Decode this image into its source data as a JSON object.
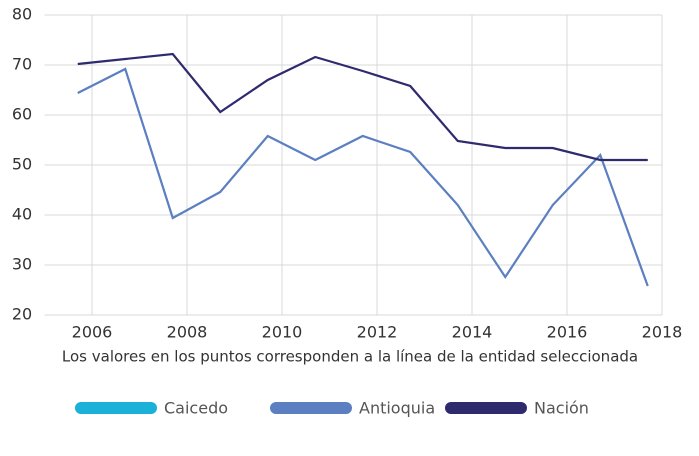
{
  "chart_data": {
    "type": "line",
    "x": [
      2005.7,
      2006.7,
      2007.7,
      2008.7,
      2009.7,
      2010.7,
      2011.7,
      2012.7,
      2013.7,
      2014.7,
      2015.7,
      2016.7,
      2017.7
    ],
    "series": [
      {
        "name": "Caicedo",
        "color": "#1ab0d8",
        "values": [
          null,
          null,
          null,
          null,
          null,
          null,
          null,
          null,
          null,
          null,
          null,
          null,
          null
        ]
      },
      {
        "name": "Antioquia",
        "color": "#5b7fc0",
        "values": [
          64.4,
          69.2,
          39.4,
          44.6,
          55.8,
          51,
          55.8,
          52.6,
          42,
          27.6,
          42,
          52,
          25.8
        ]
      },
      {
        "name": "Nación",
        "color": "#2f2a6e",
        "values": [
          70.2,
          71.2,
          72.2,
          60.6,
          67,
          71.6,
          68.8,
          65.8,
          54.8,
          53.4,
          53.4,
          51,
          51
        ]
      }
    ],
    "xlim": [
      2005,
      2018
    ],
    "xticks": [
      2006,
      2008,
      2010,
      2012,
      2014,
      2016,
      2018
    ],
    "ylim": [
      20,
      80
    ],
    "yticks": [
      20,
      30,
      40,
      50,
      60,
      70,
      80
    ],
    "grid": true,
    "annotation": "Los valores en los puntos corresponden a la línea de la entidad seleccionada"
  }
}
